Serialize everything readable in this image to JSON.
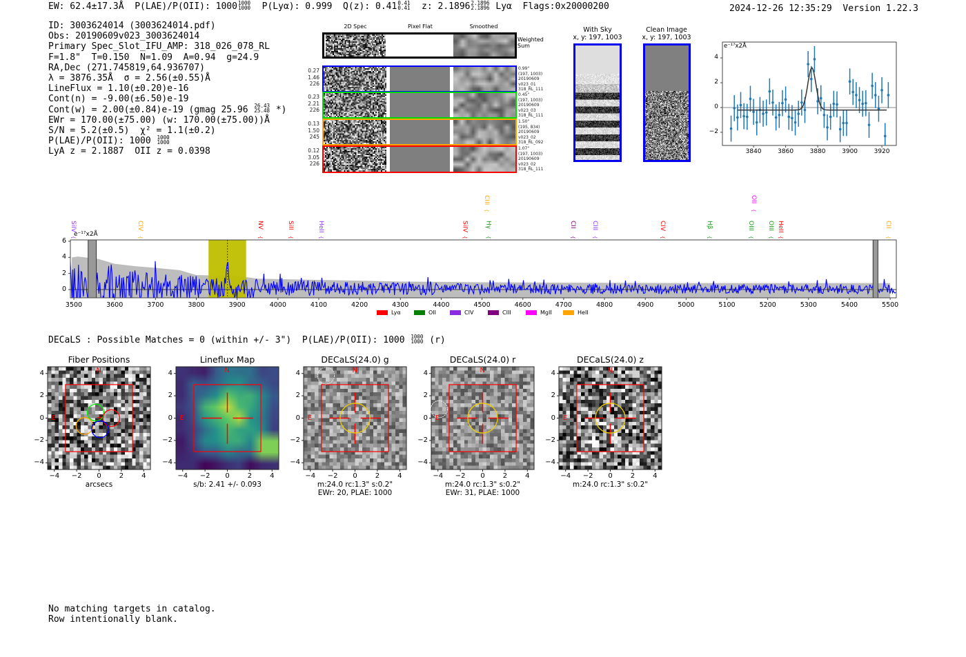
{
  "header": {
    "segments": [
      {
        "t": "EW: 62.4±17.3Å  P(LAE)/P(OII): 1000"
      },
      {
        "num": "1000",
        "den": "1000"
      },
      {
        "t": "  P(Lyα): 0.999  Q(z): 0.41"
      },
      {
        "num": "0.41",
        "den": "0.41"
      },
      {
        "t": "  z: 2.1896"
      },
      {
        "num": "2.1896",
        "den": "2.1896"
      },
      {
        "t": " Lyα  Flags:0x20000200"
      }
    ],
    "timestamp": "2024-12-26 12:35:29",
    "version": "Version 1.22.3"
  },
  "info": [
    {
      "t": "ID: 3003624014 (3003624014.pdf)"
    },
    {
      "t": "Obs: 20190609v023_3003624014"
    },
    {
      "t": "Primary Spec_Slot_IFU_AMP: 318_026_078_RL"
    },
    {
      "t": "F=1.8\"  T=0.150  N=1.09  A=0.94  g=24.9"
    },
    {
      "t": "RA,Dec (271.745819,64.936707)"
    },
    {
      "t": "λ = 3876.35Å  σ = 2.56(±0.55)Å"
    },
    {
      "t": "LineFlux = 1.10(±0.20)e-16"
    },
    {
      "t": "Cont(n) = -9.00(±6.50)e-19"
    },
    {
      "t": "Cont(w) = 2.00(±0.84)e-19 (gmag 25.96",
      "num": "26.43",
      "den": "25.48",
      "after": " *)"
    },
    {
      "t": "EWr = 170.00(±75.00) (w: 170.00(±75.00))Å"
    },
    {
      "t": "S/N = 5.2(±0.5)  χ² = 1.1(±0.2)"
    },
    {
      "t": "P(LAE)/P(OII): 1000",
      "num": "1000",
      "den": "1000"
    },
    {
      "t": "LyA z = 2.1887  OII z = 0.0398"
    }
  ],
  "spec2d": {
    "col_headers": [
      "2D Spec",
      "Pixel Flat",
      "Smoothed"
    ],
    "weighted_label": "Weighted\nSum",
    "rows": [
      {
        "color": "#0000ff",
        "left": "0.27\n1.46\n226",
        "right": "0.99\"\n(197, 1003)\n20190609\nv023_01\n318_RL_111"
      },
      {
        "color": "#00dd00",
        "left": "0.23\n2.21\n226",
        "right": "0.45\"\n(197, 1003)\n20190609\nv023_03\n318_RL_111"
      },
      {
        "color": "#ffa500",
        "left": "0.13\n1.50\n245",
        "right": "1.50\"\n(195, 834)\n20190609\nv023_02\n318_RL_092"
      },
      {
        "color": "#ff0000",
        "left": "0.12\n3.05\n226",
        "right": "1.07\"\n(197, 1003)\n20190609\nv023_02\n318_RL_111"
      }
    ]
  },
  "sky": {
    "with_sky_title": "With Sky",
    "with_sky_coords": "x, y: 197, 1003",
    "clean_title": "Clean Image",
    "clean_coords": "x, y: 197, 1003"
  },
  "chart_data": [
    {
      "type": "scatter",
      "name": "line-fit-zoom",
      "ylabel_unit": "e⁻¹⁷x2Å",
      "xlim": [
        3820.6,
        3929
      ],
      "ylim": [
        -3.06,
        5.28
      ],
      "xticks": [
        3840,
        3860,
        3880,
        3900,
        3920
      ],
      "yticks": [
        -2,
        0,
        2,
        4
      ],
      "x": [
        3826,
        3828,
        3830,
        3832,
        3834,
        3836,
        3838,
        3840,
        3842,
        3844,
        3846,
        3848,
        3850,
        3852,
        3854,
        3856,
        3858,
        3860,
        3862,
        3864,
        3866,
        3868,
        3870,
        3872,
        3874,
        3876,
        3878,
        3880,
        3882,
        3884,
        3886,
        3888,
        3890,
        3892,
        3894,
        3896,
        3898,
        3900,
        3902,
        3904,
        3906,
        3908,
        3910,
        3912,
        3914,
        3916,
        3918,
        3920,
        3922,
        3924
      ],
      "y": [
        -1.7,
        -0.05,
        -0.8,
        0.2,
        -0.7,
        -0.75,
        0.7,
        -0.35,
        -1.2,
        -0.2,
        -0.5,
        -0.4,
        1.3,
        0.4,
        -0.8,
        -0.6,
        0.35,
        0.65,
        -0.75,
        -0.85,
        -1.2,
        -0.5,
        0.4,
        -0.2,
        3.5,
        2.3,
        3.9,
        0.5,
        0.75,
        -0.6,
        -1.6,
        -0.75,
        0.3,
        0.25,
        -1.75,
        -1.25,
        -1.25,
        2.1,
        1.25,
        1.0,
        0.6,
        0.3,
        0.35,
        -1.4,
        1.75,
        1.0,
        -0.1,
        1.4,
        -2.3,
        1.0
      ],
      "yerr": 1.05,
      "fit": {
        "center": 3876.35,
        "sigma": 2.56,
        "amplitude": 3.4,
        "continuum": -0.2,
        "range": [
          3830,
          3923
        ]
      }
    },
    {
      "type": "line",
      "name": "full-spectrum",
      "ylabel_unit": "e⁻¹⁷x2Å",
      "xlim": [
        3491.5,
        5515
      ],
      "ylim": [
        -1.03,
        6.17
      ],
      "xticks": [
        3500,
        3600,
        3700,
        3800,
        3900,
        4000,
        4100,
        4200,
        4300,
        4400,
        4500,
        4600,
        4700,
        4800,
        4900,
        5000,
        5100,
        5200,
        5300,
        5400,
        5500
      ],
      "yticks": [
        0,
        2,
        4,
        6
      ],
      "error_envelope": {
        "x": [
          3495,
          3510,
          3560,
          3600,
          3650,
          3700,
          3760,
          3800,
          3900,
          3950,
          4000,
          4100,
          4200,
          4300,
          4400,
          4500,
          4700,
          5000,
          5500
        ],
        "upper": [
          4.0,
          4.1,
          3.8,
          3.2,
          2.9,
          2.7,
          2.4,
          1.8,
          1.7,
          1.35,
          1.3,
          1.2,
          1.1,
          1.0,
          0.95,
          0.9,
          0.85,
          0.8,
          0.8
        ],
        "lower": [
          -1.0,
          -1.0,
          -1.0,
          -1.0,
          -1.0,
          -1.0,
          -1.0,
          -1.0,
          -1.0,
          -1.0,
          -1.0,
          -1.0,
          -1.0,
          -1.0,
          -1.0,
          -1.0,
          -1.0,
          -1.0,
          -1.0
        ]
      },
      "highlight_band": [
        3830,
        3922
      ],
      "line_center": 3876.35,
      "masked_regions": [
        [
          3535,
          3555
        ],
        [
          5458,
          5470
        ]
      ],
      "line_labels": [
        {
          "name": "SiIV",
          "wave": 3498,
          "color": "#9933ff",
          "high": false
        },
        {
          "name": "CIV",
          "wave": 3662,
          "color": "#ffa500",
          "high": false
        },
        {
          "name": "NV",
          "wave": 3956,
          "color": "#ff0000",
          "high": false
        },
        {
          "name": "SiII",
          "wave": 4031,
          "color": "#ff0000",
          "high": false
        },
        {
          "name": "HeII",
          "wave": 4105,
          "color": "#9933ff",
          "high": false
        },
        {
          "name": "SiIV",
          "wave": 4458,
          "color": "#ff0000",
          "high": false
        },
        {
          "name": "CIII",
          "wave": 4511,
          "color": "#ffa500",
          "high": true
        },
        {
          "name": "Hγ",
          "wave": 4515,
          "color": "#1a9a1a",
          "high": false
        },
        {
          "name": "CII",
          "wave": 4722,
          "color": "#800080",
          "high": false
        },
        {
          "name": "CIII",
          "wave": 4776,
          "color": "#9933ff",
          "high": false
        },
        {
          "name": "CIV",
          "wave": 4942,
          "color": "#ff0000",
          "high": false
        },
        {
          "name": "Hβ",
          "wave": 5057,
          "color": "#1a9a1a",
          "high": false
        },
        {
          "name": "OII",
          "wave": 5165,
          "color": "#ff00ff",
          "high": true
        },
        {
          "name": "OIII",
          "wave": 5158,
          "color": "#1a9a1a",
          "high": false
        },
        {
          "name": "OIII",
          "wave": 5207,
          "color": "#1a9a1a",
          "high": false
        },
        {
          "name": "HeII",
          "wave": 5231,
          "color": "#ff0000",
          "high": false
        },
        {
          "name": "CII",
          "wave": 5495,
          "color": "#ffa500",
          "high": false
        }
      ],
      "legend": [
        {
          "label": "Lyα",
          "color": "#ff0000"
        },
        {
          "label": "OII",
          "color": "#008000"
        },
        {
          "label": "CIV",
          "color": "#8a2be2"
        },
        {
          "label": "CIII",
          "color": "#800080"
        },
        {
          "label": "MgII",
          "color": "#ff00ff"
        },
        {
          "label": "HeII",
          "color": "#ffa500"
        }
      ]
    }
  ],
  "decals": {
    "text": "DECaLS : Possible Matches = 0 (within +/- 3\")  P(LAE)/P(OII): 1000",
    "num": "1000",
    "den": "1000",
    "after": " (r)"
  },
  "cutouts": [
    {
      "title": "Fiber Positions",
      "kind": "fiber",
      "sub1": "arcsecs",
      "sub2": ""
    },
    {
      "title": "Lineflux Map",
      "kind": "lineflux",
      "sub1": "s/b: 2.41 +/- 0.093",
      "sub2": ""
    },
    {
      "title": "DECaLS(24.0) g",
      "kind": "img",
      "sub1": "m:24.0 rc:1.3\"  s:0.2\"",
      "sub2": "EWr: 20, PLAE: 1000"
    },
    {
      "title": "DECaLS(24.0) r",
      "kind": "img",
      "sub1": "m:24.0 rc:1.3\"  s:0.2\"",
      "sub2": "EWr: 31, PLAE: 1000"
    },
    {
      "title": "DECaLS(24.0) z",
      "kind": "img",
      "sub1": "m:24.0 rc:1.3\"  s:0.2\"",
      "sub2": ""
    }
  ],
  "cutout_labels": {
    "north": "N",
    "east": "E",
    "ticks": [
      "−4",
      "−2",
      "0",
      "2",
      "4"
    ],
    "tick_values": [
      -4,
      -2,
      0,
      2,
      4
    ]
  },
  "footer": [
    "No matching targets in catalog.",
    "Row intentionally blank."
  ]
}
